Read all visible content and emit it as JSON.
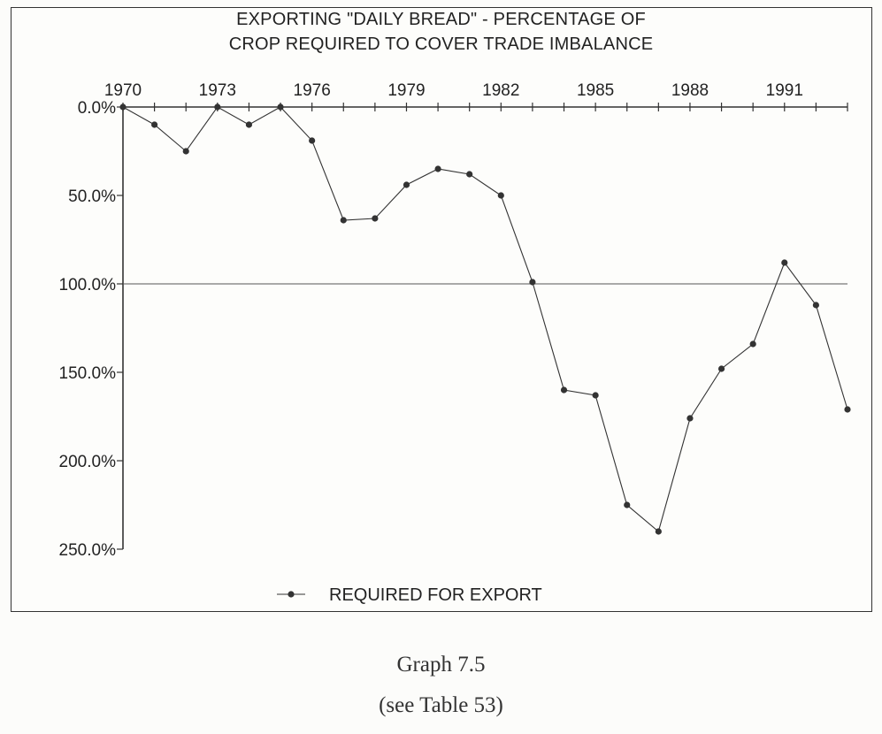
{
  "chart_data": {
    "type": "line",
    "title_lines": [
      "EXPORTING \"DAILY BREAD\" - PERCENTAGE OF",
      "CROP REQUIRED TO COVER TRADE IMBALANCE"
    ],
    "x_tick_labels": [
      "1970",
      "1973",
      "1976",
      "1979",
      "1982",
      "1985",
      "1988",
      "1991"
    ],
    "y_tick_labels": [
      "0.0%",
      "50.0%",
      "100.0%",
      "150.0%",
      "200.0%",
      "250.0%"
    ],
    "y_ticks": [
      0,
      50,
      100,
      150,
      200,
      250
    ],
    "xlim": [
      1970,
      1993
    ],
    "ylim": [
      0,
      250
    ],
    "y_inverted": true,
    "reference_line": 100,
    "legend_position": "bottom-center",
    "series": [
      {
        "name": "REQUIRED FOR EXPORT",
        "color": "#333333",
        "x": [
          1970,
          1971,
          1972,
          1973,
          1974,
          1975,
          1976,
          1977,
          1978,
          1979,
          1980,
          1981,
          1982,
          1983,
          1984,
          1985,
          1986,
          1987,
          1988,
          1989,
          1990,
          1991,
          1992,
          1993
        ],
        "values": [
          0,
          10,
          25,
          0,
          10,
          0,
          19,
          64,
          63,
          44,
          35,
          38,
          50,
          99,
          160,
          163,
          225,
          240,
          176,
          148,
          134,
          88,
          112,
          171
        ]
      }
    ]
  },
  "caption": {
    "line1": "Graph 7.5",
    "line2": "(see Table 53)"
  }
}
